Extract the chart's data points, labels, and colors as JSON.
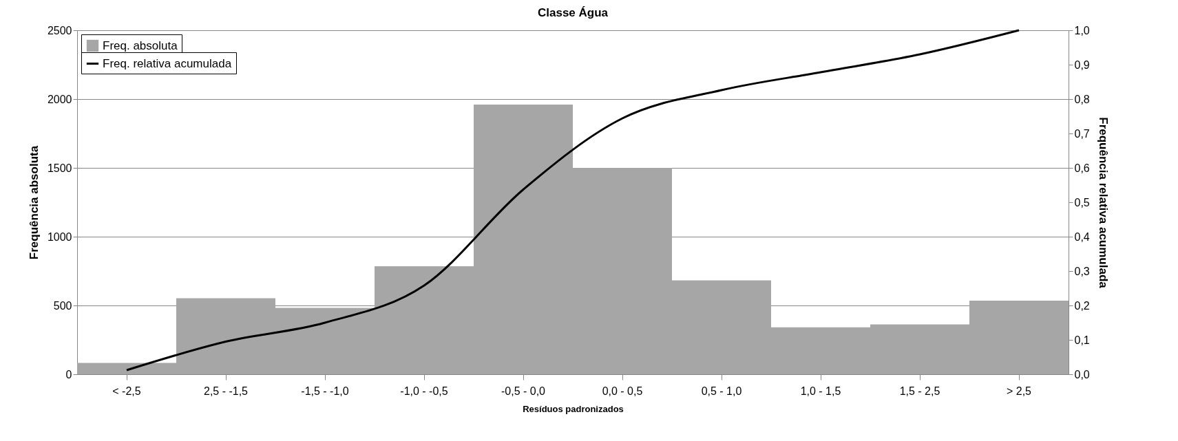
{
  "chart_data": {
    "type": "bar",
    "title": "Classe Água",
    "xlabel": "Resíduos padronizados",
    "ylabel": "Frequência absoluta",
    "y2label": "Frequência relativa acumulada",
    "categories": [
      "< -2,5",
      "2,5 - -1,5",
      "-1,5 - -1,0",
      "-1,0 - -0,5",
      "-0,5 - 0,0",
      "0,0 - 0,5",
      "0,5 - 1,0",
      "1,0 - 1,5",
      "1,5 - 2,5",
      "> 2,5"
    ],
    "series": [
      {
        "name": "Freq. absoluta",
        "color": "#a6a6a6",
        "values": [
          83,
          553,
          483,
          785,
          1960,
          1500,
          682,
          341,
          362,
          535
        ]
      },
      {
        "name": "Freq. relativa acumulada",
        "type": "line",
        "axis": "y2",
        "color": "#000000",
        "line_style": "solid",
        "values": [
          0.012,
          0.095,
          0.15,
          0.258,
          0.537,
          0.744,
          0.826,
          0.878,
          0.93,
          1.0
        ]
      }
    ],
    "ylim": [
      0,
      2500
    ],
    "yticks": [
      0,
      500,
      1000,
      1500,
      2000,
      2500
    ],
    "y2lim": [
      0,
      1.0
    ],
    "y2ticks": [
      {
        "value": 0,
        "label": "0,0"
      },
      {
        "value": 0.1,
        "label": "0,1"
      },
      {
        "value": 0.2,
        "label": "0,2"
      },
      {
        "value": 0.3,
        "label": "0,3"
      },
      {
        "value": 0.4,
        "label": "0,4"
      },
      {
        "value": 0.5,
        "label": "0,5"
      },
      {
        "value": 0.6,
        "label": "0,6"
      },
      {
        "value": 0.7,
        "label": "0,7"
      },
      {
        "value": 0.8,
        "label": "0,8"
      },
      {
        "value": 0.9,
        "label": "0,9"
      },
      {
        "value": 1.0,
        "label": "1,0"
      }
    ],
    "grid": "y",
    "legend": "top left",
    "marker": "none"
  }
}
